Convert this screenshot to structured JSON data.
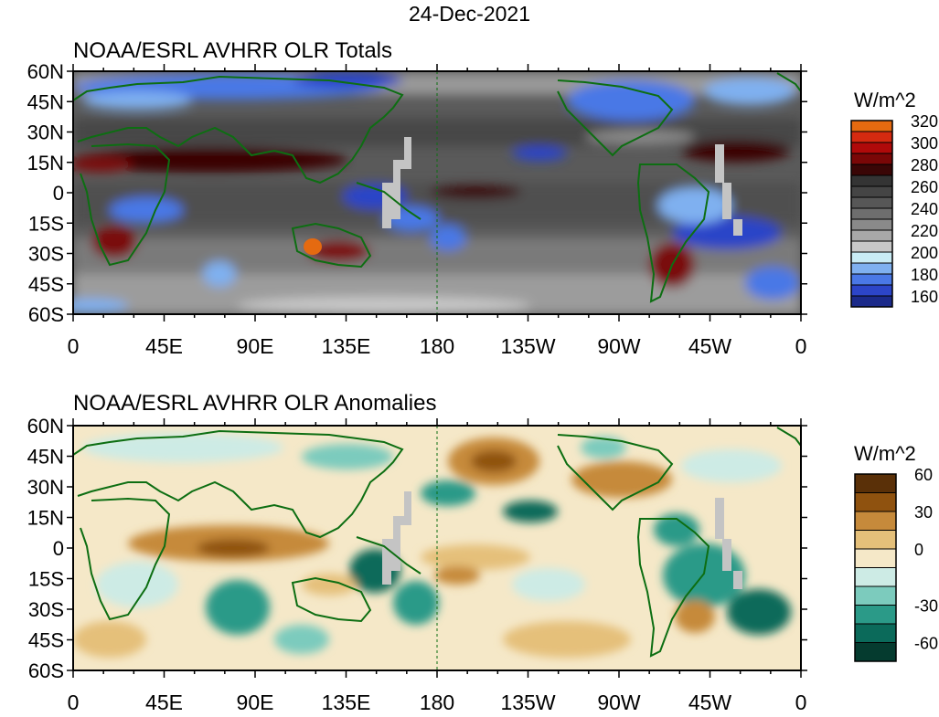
{
  "date": "24-Dec-2021",
  "panels": [
    {
      "title": "NOAA/ESRL AVHRR OLR Totals",
      "units": "W/m^2",
      "colorbar": {
        "colors": [
          "#1b2a8a",
          "#2c45c8",
          "#4a78e6",
          "#7fb0f0",
          "#c9ecf5",
          "#c8c8c8",
          "#a8a8a8",
          "#8a8a8a",
          "#6e6e6e",
          "#575757",
          "#454545",
          "#343434",
          "#3a0606",
          "#7a0707",
          "#b00a0a",
          "#d52a10",
          "#e56a10"
        ],
        "labels": [
          "160",
          "180",
          "200",
          "220",
          "240",
          "260",
          "280",
          "300",
          "320"
        ]
      }
    },
    {
      "title": "NOAA/ESRL AVHRR OLR Anomalies",
      "units": "W/m^2",
      "colorbar": {
        "colors": [
          "#053b2f",
          "#0b6a5a",
          "#2b9a88",
          "#7ccbbd",
          "#cdebe5",
          "#f5e8c8",
          "#e5c07a",
          "#c68a3b",
          "#8f520f",
          "#5a3008"
        ],
        "labels": [
          "-60",
          "-30",
          "0",
          "30",
          "60"
        ]
      }
    }
  ],
  "axes": {
    "lat_labels": [
      "60N",
      "45N",
      "30N",
      "15N",
      "0",
      "15S",
      "30S",
      "45S",
      "60S"
    ],
    "lon_labels": [
      "0",
      "45E",
      "90E",
      "135E",
      "180",
      "135W",
      "90W",
      "45W",
      "0"
    ]
  },
  "map_colors": {
    "coast": "#0d6e12",
    "missing": "#c4c4c4"
  }
}
